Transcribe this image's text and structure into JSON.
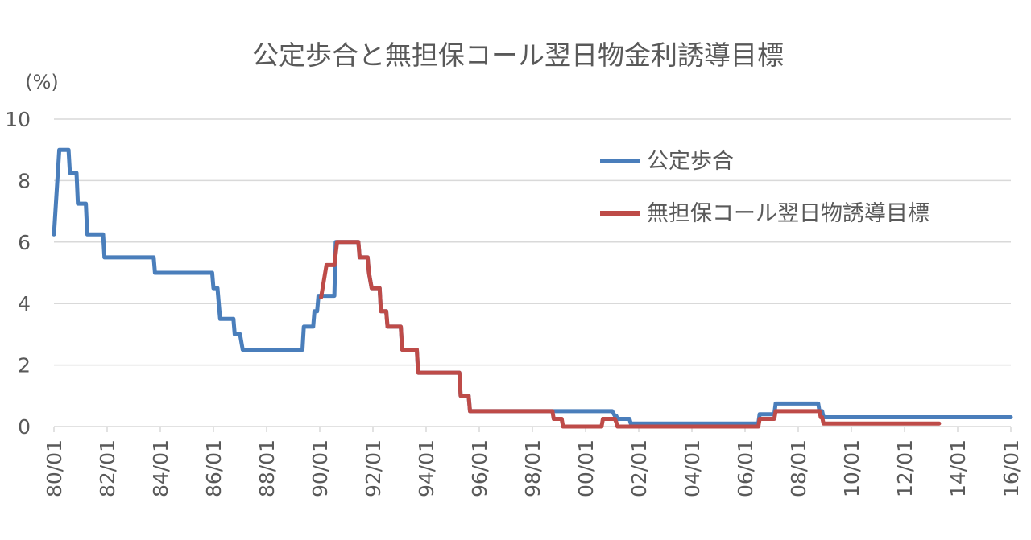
{
  "chart_data": {
    "type": "line",
    "title": "公定歩合と無担保コール翌日物金利誘導目標",
    "unit_label": "(%)",
    "ylim": [
      0,
      10
    ],
    "y_ticks": [
      "0",
      "2",
      "4",
      "6",
      "8",
      "10"
    ],
    "xlim": [
      1980.0,
      2016.0
    ],
    "x_tick_labels": [
      "80/01",
      "82/01",
      "84/01",
      "86/01",
      "88/01",
      "90/01",
      "92/01",
      "94/01",
      "96/01",
      "98/01",
      "00/01",
      "02/01",
      "04/01",
      "06/01",
      "08/01",
      "10/01",
      "12/01",
      "14/01",
      "16/01"
    ],
    "grid": true,
    "legend_position": "top-right",
    "series": [
      {
        "name": "公定歩合",
        "color": "#4a7ebb",
        "points": [
          [
            1980.0,
            6.25
          ],
          [
            1980.2,
            9.0
          ],
          [
            1980.55,
            9.0
          ],
          [
            1980.6,
            8.25
          ],
          [
            1980.85,
            8.25
          ],
          [
            1980.9,
            7.25
          ],
          [
            1981.2,
            7.25
          ],
          [
            1981.25,
            6.25
          ],
          [
            1981.85,
            6.25
          ],
          [
            1981.9,
            5.5
          ],
          [
            1983.75,
            5.5
          ],
          [
            1983.8,
            5.0
          ],
          [
            1985.95,
            5.0
          ],
          [
            1986.0,
            4.5
          ],
          [
            1986.15,
            4.5
          ],
          [
            1986.2,
            4.0
          ],
          [
            1986.25,
            3.5
          ],
          [
            1986.75,
            3.5
          ],
          [
            1986.8,
            3.0
          ],
          [
            1987.0,
            3.0
          ],
          [
            1987.1,
            2.5
          ],
          [
            1989.35,
            2.5
          ],
          [
            1989.4,
            3.25
          ],
          [
            1989.75,
            3.25
          ],
          [
            1989.8,
            3.75
          ],
          [
            1989.9,
            3.75
          ],
          [
            1989.95,
            4.25
          ],
          [
            1990.55,
            4.25
          ],
          [
            1990.6,
            6.0
          ],
          [
            1991.45,
            6.0
          ],
          [
            1991.5,
            5.5
          ],
          [
            1991.8,
            5.5
          ],
          [
            1991.85,
            5.0
          ],
          [
            1991.95,
            4.5
          ],
          [
            1992.25,
            4.5
          ],
          [
            1992.3,
            3.75
          ],
          [
            1992.5,
            3.75
          ],
          [
            1992.55,
            3.25
          ],
          [
            1993.05,
            3.25
          ],
          [
            1993.1,
            2.5
          ],
          [
            1993.65,
            2.5
          ],
          [
            1993.7,
            1.75
          ],
          [
            1995.25,
            1.75
          ],
          [
            1995.3,
            1.0
          ],
          [
            1995.6,
            1.0
          ],
          [
            1995.65,
            0.5
          ],
          [
            2001.0,
            0.5
          ],
          [
            2001.1,
            0.35
          ],
          [
            2001.15,
            0.35
          ],
          [
            2001.2,
            0.25
          ],
          [
            2001.65,
            0.25
          ],
          [
            2001.7,
            0.1
          ],
          [
            2006.5,
            0.1
          ],
          [
            2006.55,
            0.4
          ],
          [
            2007.1,
            0.4
          ],
          [
            2007.15,
            0.75
          ],
          [
            2008.75,
            0.75
          ],
          [
            2008.8,
            0.5
          ],
          [
            2008.9,
            0.5
          ],
          [
            2008.95,
            0.3
          ],
          [
            2016.0,
            0.3
          ]
        ]
      },
      {
        "name": "無担保コール翌日物誘導目標",
        "color": "#be4b48",
        "points": [
          [
            1990.05,
            4.2
          ],
          [
            1990.25,
            5.25
          ],
          [
            1990.55,
            5.25
          ],
          [
            1990.65,
            6.0
          ],
          [
            1991.45,
            6.0
          ],
          [
            1991.5,
            5.5
          ],
          [
            1991.8,
            5.5
          ],
          [
            1991.85,
            5.0
          ],
          [
            1991.95,
            4.5
          ],
          [
            1992.25,
            4.5
          ],
          [
            1992.3,
            3.75
          ],
          [
            1992.5,
            3.75
          ],
          [
            1992.55,
            3.25
          ],
          [
            1993.05,
            3.25
          ],
          [
            1993.1,
            2.5
          ],
          [
            1993.65,
            2.5
          ],
          [
            1993.7,
            1.75
          ],
          [
            1995.25,
            1.75
          ],
          [
            1995.3,
            1.0
          ],
          [
            1995.6,
            1.0
          ],
          [
            1995.65,
            0.5
          ],
          [
            1998.75,
            0.5
          ],
          [
            1998.8,
            0.25
          ],
          [
            1999.1,
            0.25
          ],
          [
            1999.15,
            0.0
          ],
          [
            2000.6,
            0.0
          ],
          [
            2000.65,
            0.25
          ],
          [
            2001.1,
            0.25
          ],
          [
            2001.15,
            0.15
          ],
          [
            2001.2,
            0.0
          ],
          [
            2006.5,
            0.0
          ],
          [
            2006.55,
            0.25
          ],
          [
            2007.1,
            0.25
          ],
          [
            2007.15,
            0.5
          ],
          [
            2008.8,
            0.5
          ],
          [
            2008.85,
            0.3
          ],
          [
            2008.9,
            0.3
          ],
          [
            2008.95,
            0.1
          ],
          [
            2013.3,
            0.1
          ]
        ]
      }
    ]
  }
}
